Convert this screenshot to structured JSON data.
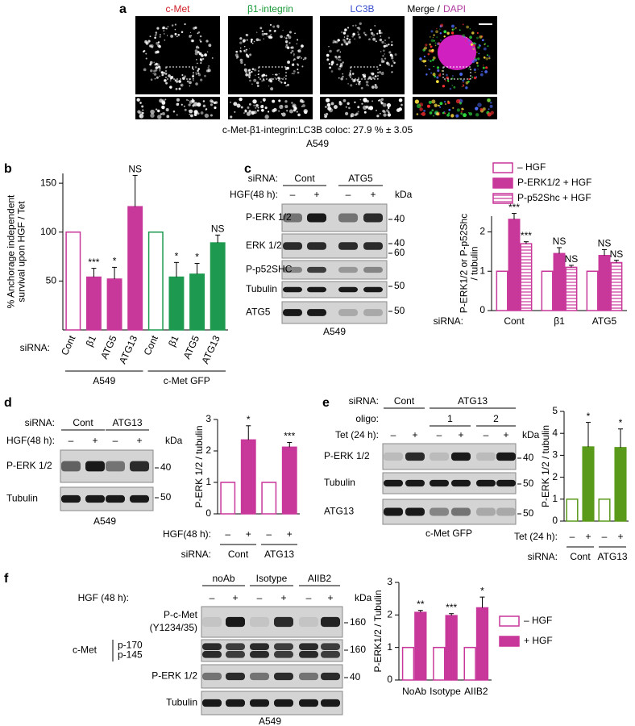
{
  "panel_a": {
    "label": "a",
    "channels": [
      "c-Met",
      "β1-integrin",
      "LC3B",
      "Merge /"
    ],
    "channel_colors": [
      "#d0202a",
      "#1a9a3a",
      "#3a4fd0",
      "#000000"
    ],
    "dapi": "DAPI",
    "dapi_color": "#b0389f",
    "caption": "c-Met-β1-integrin:LC3B coloc: 27.9 % ± 3.05",
    "cell_line": "A549"
  },
  "blots": [
    {
      "label": "c",
      "header": [
        {
          "title": "siRNA:",
          "groups": [
            "Cont",
            "ATG5"
          ]
        },
        {
          "title": "HGF(48 h):",
          "lanes": [
            "–",
            "+",
            "–",
            "+"
          ]
        }
      ],
      "unit": "kDa",
      "rows": [
        {
          "name": "P-ERK 1/2",
          "marker": "40"
        },
        {
          "name": "ERK 1/2",
          "marker": "40"
        },
        {
          "name": "P-p52SHC",
          "marker": "60"
        },
        {
          "name": "Tubulin",
          "marker": "50"
        },
        {
          "name": "ATG5",
          "marker": "50"
        }
      ],
      "caption": "A549"
    },
    {
      "label": "d",
      "header": [
        {
          "title": "siRNA:",
          "groups": [
            "Cont",
            "ATG13"
          ]
        },
        {
          "title": "HGF(48 h):",
          "lanes": [
            "–",
            "+",
            "–",
            "+"
          ]
        }
      ],
      "unit": "kDa",
      "rows": [
        {
          "name": "P-ERK 1/2",
          "marker": "40"
        },
        {
          "name": "Tubulin",
          "marker": "50"
        }
      ],
      "caption": "A549"
    },
    {
      "label": "e",
      "header": [
        {
          "title": "siRNA:",
          "groups": [
            "Cont",
            "ATG13"
          ]
        },
        {
          "title": "oligo:",
          "groups": [
            "1",
            "2"
          ]
        },
        {
          "title": "Tet (24 h):",
          "lanes": [
            "–",
            "+",
            "–",
            "+",
            "–",
            "+"
          ]
        }
      ],
      "unit": "kDa",
      "rows": [
        {
          "name": "P-ERK 1/2",
          "marker": "40"
        },
        {
          "name": "Tubulin",
          "marker": "50"
        },
        {
          "name": "ATG13",
          "marker": "50"
        }
      ],
      "caption": "c-Met GFP"
    },
    {
      "label": "f",
      "header": [
        {
          "groups": [
            "noAb",
            "Isotype",
            "AIIB2"
          ]
        },
        {
          "title": "HGF (48 h):",
          "lanes": [
            "–",
            "+",
            "–",
            "+",
            "–",
            "+"
          ]
        }
      ],
      "unit": "kDa",
      "rows": [
        {
          "name": "P-c-Met",
          "subname": "(Y1234/35)",
          "marker": "160"
        },
        {
          "name": "c-Met",
          "bands": [
            "p-170",
            "p-145"
          ],
          "marker": "160"
        },
        {
          "name": "P-ERK 1/2",
          "marker": "40"
        },
        {
          "name": "Tubulin"
        }
      ],
      "caption": "A549"
    }
  ],
  "chart_data": [
    {
      "type": "bar",
      "label": "b",
      "ylabel": [
        "% Anchorage independent",
        "survival upon HGF / Tet"
      ],
      "xlabel_title": "siRNA:",
      "categories": [
        "Cont",
        "β1",
        "ATG5",
        "ATG13",
        "Cont",
        "β1",
        "ATG5",
        "ATG13"
      ],
      "values": [
        100,
        54,
        52,
        126,
        100,
        54,
        57,
        89
      ],
      "errors": [
        null,
        9,
        12,
        32,
        null,
        15,
        11,
        8
      ],
      "annotations": [
        null,
        "***",
        "*",
        "NS",
        null,
        "*",
        "*",
        "NS"
      ],
      "colors": [
        "#c8379a",
        "#c8379a",
        "#c8379a",
        "#c8379a",
        "#1e9a50",
        "#1e9a50",
        "#1e9a50",
        "#1e9a50"
      ],
      "hollow": [
        true,
        false,
        false,
        false,
        true,
        false,
        false,
        false
      ],
      "groups": [
        "A549",
        "c-Met GFP"
      ],
      "ylim": [
        0,
        160
      ],
      "yticks": [
        50,
        100,
        150
      ]
    },
    {
      "type": "bar",
      "ylabel": [
        "P-ERK1/2 or P-p52Shc",
        "/ tubulin"
      ],
      "xlabel_title": "siRNA:",
      "categories": [
        "Cont",
        "β1",
        "ATG5"
      ],
      "series": [
        {
          "name": "– HGF",
          "color": "#c8379a",
          "style": "hollow",
          "values": [
            1,
            1,
            1
          ]
        },
        {
          "name": "P-ERK1/2 + HGF",
          "color": "#c8379a",
          "style": "solid",
          "values": [
            2.32,
            1.45,
            1.4
          ],
          "errors": [
            0.15,
            0.15,
            0.15
          ],
          "annotations": [
            "***",
            "NS",
            "NS"
          ]
        },
        {
          "name": "P-p52Shc + HGF",
          "color": "#c8379a",
          "style": "hatched",
          "values": [
            1.7,
            1.1,
            1.22
          ],
          "errors": [
            0.05,
            0.05,
            0.06
          ],
          "annotations": [
            "***",
            "NS",
            "NS"
          ]
        }
      ],
      "legend": "top",
      "ylim": [
        0,
        2.4
      ],
      "yticks": [
        0,
        1,
        2
      ]
    },
    {
      "type": "bar",
      "ylabel": [
        "P-ERK 1/2 / tubulin"
      ],
      "xlabel_title": "HGF(48 h):",
      "group_title": "siRNA:",
      "categories": [
        "–",
        "+",
        "–",
        "+"
      ],
      "values": [
        1,
        2.35,
        1,
        2.12
      ],
      "errors": [
        null,
        0.45,
        null,
        0.15
      ],
      "annotations": [
        null,
        "*",
        null,
        "***"
      ],
      "color": "#c8379a",
      "hollow": [
        true,
        false,
        true,
        false
      ],
      "groups": [
        "Cont",
        "ATG13"
      ],
      "ylim": [
        0,
        3
      ],
      "yticks": [
        0,
        1,
        2,
        3
      ]
    },
    {
      "type": "bar",
      "ylabel": [
        "P-ERK 1/2 / tubulin"
      ],
      "xlabel_title": "Tet (24 h):",
      "group_title": "siRNA:",
      "categories": [
        "–",
        "+",
        "–",
        "+"
      ],
      "values": [
        1,
        3.38,
        1,
        3.35
      ],
      "errors": [
        null,
        1.12,
        null,
        0.85
      ],
      "annotations": [
        null,
        "*",
        null,
        "*"
      ],
      "color": "#5a9a1a",
      "hollow": [
        true,
        false,
        true,
        false
      ],
      "groups": [
        "Cont",
        "ATG13"
      ],
      "ylim": [
        0,
        5
      ],
      "yticks": [
        0,
        1,
        2,
        3,
        4,
        5
      ]
    },
    {
      "type": "bar",
      "ylabel": [
        "P-ERK1/2 / Tubulin"
      ],
      "categories": [
        "NoAb",
        "Isotype",
        "AIIB2"
      ],
      "series": [
        {
          "name": "– HGF",
          "color": "#c8379a",
          "style": "hollow",
          "values": [
            1,
            1,
            1
          ]
        },
        {
          "name": "+ HGF",
          "color": "#c8379a",
          "style": "solid",
          "values": [
            2.08,
            1.98,
            2.22
          ],
          "errors": [
            0.06,
            0.06,
            0.33
          ],
          "annotations": [
            "**",
            "***",
            "*"
          ]
        }
      ],
      "legend": "right",
      "ylim": [
        0,
        3
      ],
      "yticks": [
        0,
        1,
        2,
        3
      ]
    }
  ]
}
